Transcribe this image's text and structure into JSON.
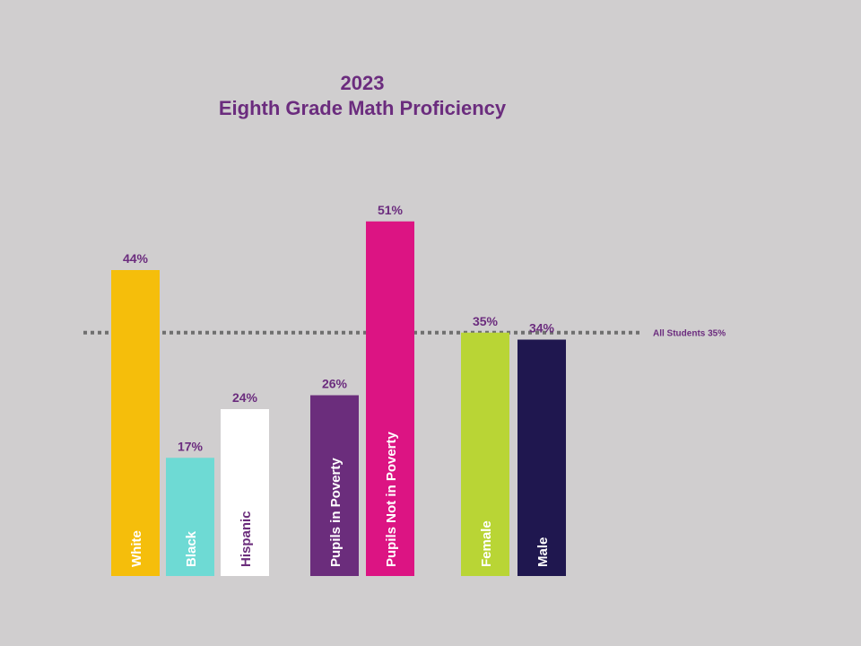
{
  "chart_data": {
    "type": "bar",
    "title": "2023",
    "subtitle": "Eighth Grade Math Proficiency",
    "xlabel": "",
    "ylabel": "",
    "ylim": [
      0,
      60
    ],
    "grid": false,
    "legend": "none",
    "categories": [
      "White",
      "Black",
      "Hispanic",
      "Pupils in Poverty",
      "Pupils Not in Poverty",
      "Female",
      "Male"
    ],
    "values": [
      44,
      17,
      24,
      26,
      51,
      35,
      34
    ],
    "value_labels": [
      "44%",
      "17%",
      "24%",
      "26%",
      "51%",
      "35%",
      "34%"
    ],
    "colors": [
      "#f5be0b",
      "#6edad4",
      "#ffffff",
      "#6b2d7c",
      "#dc1483",
      "#b9d535",
      "#1f174f"
    ],
    "label_colors": [
      "#ffffff",
      "#ffffff",
      "#6b2d7c",
      "#ffffff",
      "#ffffff",
      "#ffffff",
      "#ffffff"
    ],
    "reference_line": {
      "value": 35,
      "label": "All Students 35%",
      "color": "#6f6f6f"
    },
    "value_label_color": "#6b2c7e"
  }
}
